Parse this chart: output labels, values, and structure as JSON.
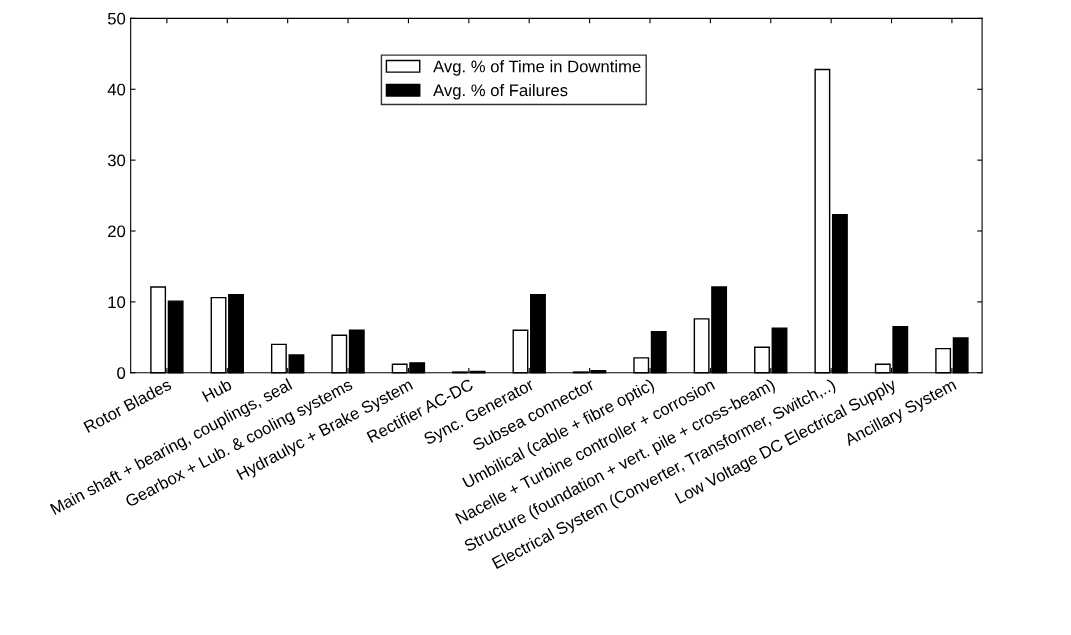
{
  "chart_data": {
    "type": "bar",
    "categories": [
      "Rotor Blades",
      "Hub",
      "Main shaft + bearing, couplings, seal",
      "Gearbox + Lub. & cooling systems",
      "Hydraulyc + Brake System",
      "Rectifier AC-DC",
      "Sync. Generator",
      "Subsea connector",
      "Umbilical (cable + fibre optic)",
      "Nacelle + Turbine controller + corrosion",
      "Structure (foundation + vert. pile + cross-beam)",
      "Electrical System (Converter, Transformer, Switch,..)",
      "Low Voltage DC Electrical Supply",
      "Ancillary System"
    ],
    "series": [
      {
        "name": "Avg. % of Time in Downtime",
        "color": "#ffffff",
        "values": [
          12.1,
          10.6,
          4.0,
          5.3,
          1.2,
          0.1,
          6.0,
          0.1,
          2.1,
          7.6,
          3.6,
          42.8,
          1.2,
          3.4
        ]
      },
      {
        "name": "Avg. % of Failures",
        "color": "#000000",
        "values": [
          10.1,
          11.0,
          2.5,
          6.0,
          1.4,
          0.2,
          11.0,
          0.3,
          5.8,
          12.1,
          6.3,
          22.3,
          6.5,
          4.9
        ]
      }
    ],
    "ylim": [
      0,
      50
    ],
    "yticks": [
      0,
      10,
      20,
      30,
      40,
      50
    ],
    "grid": false,
    "legend": "top"
  }
}
